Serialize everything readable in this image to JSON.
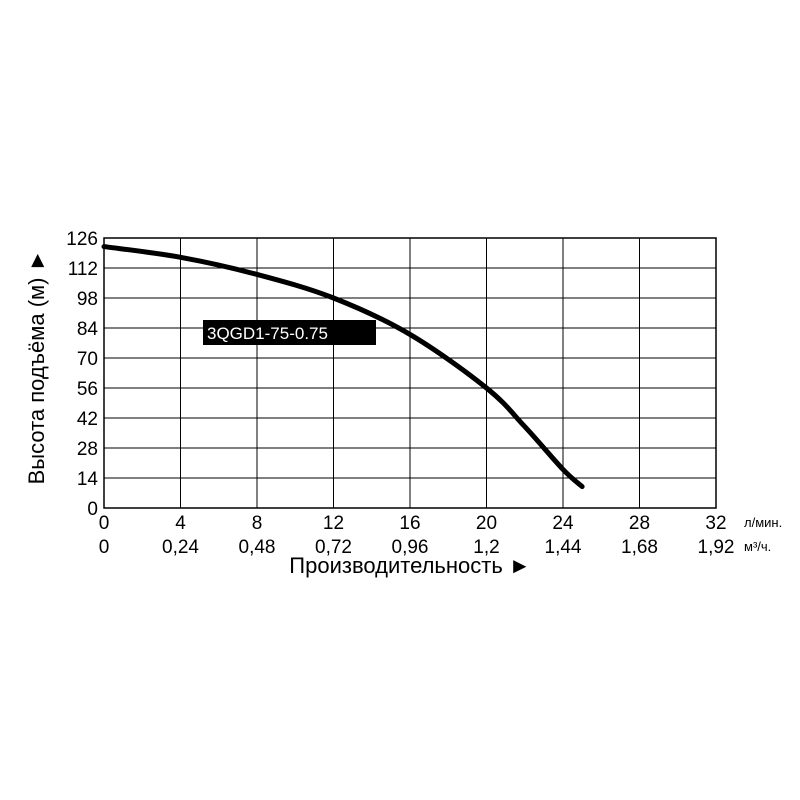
{
  "chart_data": {
    "type": "line",
    "ylabel": "Высота подъёма (м) ►",
    "xlabel": "Производительность ►",
    "x_unit": "л/мин.",
    "x2_unit": "м³/ч.",
    "xlim": [
      0,
      32
    ],
    "ylim": [
      0,
      126
    ],
    "x_ticks": [
      "0",
      "4",
      "8",
      "12",
      "16",
      "20",
      "24",
      "28",
      "32"
    ],
    "x2_ticks": [
      "0",
      "0,24",
      "0,48",
      "0,72",
      "0,96",
      "1,2",
      "1,44",
      "1,68",
      "1,92"
    ],
    "y_ticks": [
      "0",
      "14",
      "28",
      "42",
      "56",
      "70",
      "84",
      "98",
      "112",
      "126"
    ],
    "grid": true,
    "series": [
      {
        "name": "3QGD1-75-0.75",
        "color": "#000000",
        "x": [
          0,
          4,
          8,
          12,
          16,
          20,
          22,
          24,
          25
        ],
        "y": [
          122,
          117,
          109,
          98,
          81,
          56,
          38,
          18,
          10
        ]
      }
    ]
  }
}
